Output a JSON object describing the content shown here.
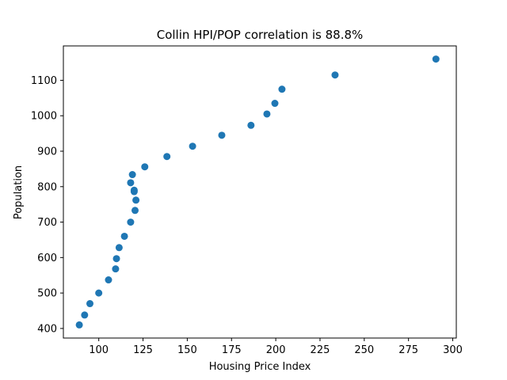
{
  "chart_data": {
    "type": "scatter",
    "title": "Collin HPI/POP correlation  is 88.8%",
    "xlabel": "Housing Price Index",
    "ylabel": "Population",
    "xlim": [
      80,
      302
    ],
    "ylim": [
      373,
      1197
    ],
    "xticks": [
      100,
      125,
      150,
      175,
      200,
      225,
      250,
      275,
      300
    ],
    "yticks": [
      400,
      500,
      600,
      700,
      800,
      900,
      1000,
      1100
    ],
    "marker_color": "#1f77b4",
    "grid": false,
    "series": [
      {
        "points": [
          {
            "x": 89,
            "y": 410
          },
          {
            "x": 92,
            "y": 438
          },
          {
            "x": 95,
            "y": 470
          },
          {
            "x": 100,
            "y": 500
          },
          {
            "x": 105.5,
            "y": 537
          },
          {
            "x": 109.5,
            "y": 568
          },
          {
            "x": 110,
            "y": 597
          },
          {
            "x": 111.5,
            "y": 628
          },
          {
            "x": 114.5,
            "y": 660
          },
          {
            "x": 118,
            "y": 700
          },
          {
            "x": 120.5,
            "y": 733
          },
          {
            "x": 121,
            "y": 762
          },
          {
            "x": 120,
            "y": 786
          },
          {
            "x": 120,
            "y": 790
          },
          {
            "x": 118,
            "y": 811
          },
          {
            "x": 119,
            "y": 834
          },
          {
            "x": 126,
            "y": 856
          },
          {
            "x": 138.5,
            "y": 885
          },
          {
            "x": 153,
            "y": 914
          },
          {
            "x": 169.5,
            "y": 945
          },
          {
            "x": 186,
            "y": 973
          },
          {
            "x": 195,
            "y": 1005
          },
          {
            "x": 199.5,
            "y": 1035
          },
          {
            "x": 203.5,
            "y": 1075
          },
          {
            "x": 233.5,
            "y": 1115
          },
          {
            "x": 290.5,
            "y": 1160
          }
        ]
      }
    ]
  }
}
